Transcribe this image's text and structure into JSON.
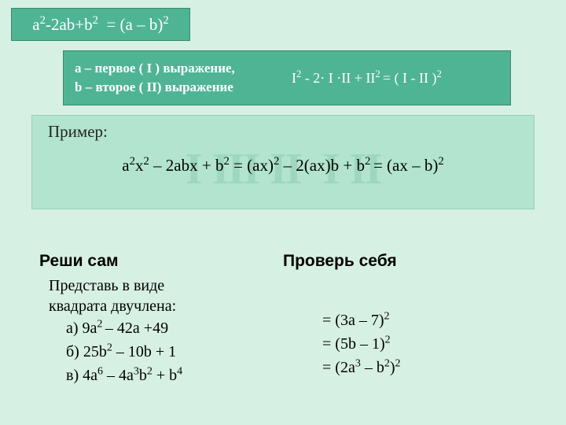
{
  "colors": {
    "page_bg": "#d7f0e4",
    "box_bg": "#4fb494",
    "box_border": "#3a8a6f",
    "example_bg": "#b2e4cf",
    "example_border": "#97d0b9",
    "watermark": "#9ed6be",
    "text_light": "#ffffff",
    "text_dark": "#222222"
  },
  "font": {
    "family": "Times New Roman",
    "title_family": "Arial",
    "formula_size_pt": 21,
    "def_size_pt": 17,
    "section_title_pt": 21,
    "body_pt": 20,
    "watermark_pt": 56
  },
  "formula_box": {
    "text_html": "a<sup>2</sup>-2ab+b<sup>2</sup>&nbsp; = (a – b)<sup>2</sup>"
  },
  "def_box": {
    "line1": "a – первое ( I ) выражение,",
    "line2": "b – второе ( II) выражение",
    "right_html": "I<sup>2</sup> - 2· I ·II + II<sup>2 </sup>= ( I - II )<sup>2</sup>"
  },
  "example": {
    "label": "Пример:",
    "formula_html": "a<sup>2</sup>x<sup>2</sup> – 2abx + b<sup>2</sup> = (ax)<sup>2</sup> – 2(ax)b + b<sup>2 </sup>= (ax – b)<sup>2</sup>",
    "watermarks": [
      "I",
      "I",
      "II",
      "II",
      "I",
      "II"
    ]
  },
  "solve": {
    "title": "Реши сам",
    "intro_line1": "Представь в виде",
    "intro_line2": "квадрата двучлена:",
    "items": [
      {
        "label_html": "а) 9a<sup>2 </sup>– 42a +49"
      },
      {
        "label_html": "б) 25b<sup>2</sup> – 10b + 1"
      },
      {
        "label_html": "в) 4a<sup>6</sup> – 4a<sup>3</sup>b<sup>2</sup> + b<sup>4</sup>"
      }
    ]
  },
  "check": {
    "title": "Проверь себя",
    "answers": [
      {
        "label_html": "= (3a – 7)<sup>2</sup>"
      },
      {
        "label_html": "= (5b – 1)<sup>2</sup>"
      },
      {
        "label_html": "= (2a<sup>3</sup> – b<sup>2</sup>)<sup>2</sup>"
      }
    ]
  }
}
